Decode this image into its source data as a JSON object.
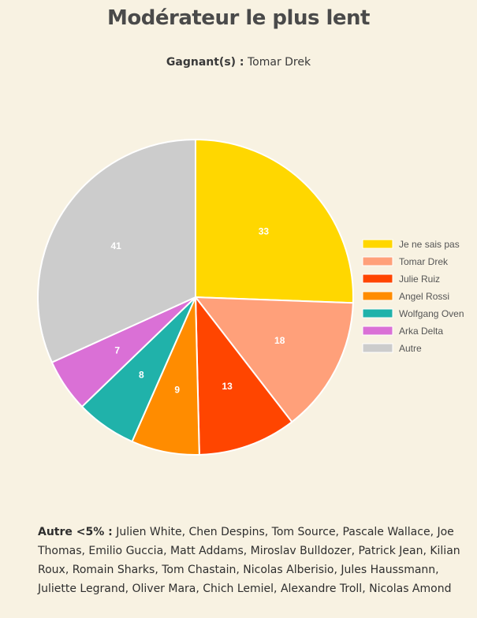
{
  "header": {
    "title": "Modérateur le plus lent",
    "winners_label": "Gagnant(s) :",
    "winners_value": "Tomar Drek"
  },
  "chart_data": {
    "type": "pie",
    "slices": [
      {
        "label": "Je ne sais pas",
        "value": 33,
        "color": "#ffd700"
      },
      {
        "label": "Tomar Drek",
        "value": 18,
        "color": "#ffa07a"
      },
      {
        "label": "Julie Ruiz",
        "value": 13,
        "color": "#ff4500"
      },
      {
        "label": "Angel Rossi",
        "value": 9,
        "color": "#ff8c00"
      },
      {
        "label": "Wolfgang Oven",
        "value": 8,
        "color": "#20b2aa"
      },
      {
        "label": "Arka Delta",
        "value": 7,
        "color": "#da70d6"
      },
      {
        "label": "Autre",
        "value": 41,
        "color": "#cccccc"
      }
    ],
    "legend_position": "right"
  },
  "footer": {
    "label": "Autre <5% :",
    "text": "Julien White, Chen Despins, Tom Source, Pascale Wallace, Joe Thomas, Emilio Guccia, Matt Addams, Miroslav Bulldozer, Patrick Jean, Kilian Roux, Romain Sharks, Tom Chastain, Nicolas Alberisio, Jules Haussmann, Juliette Legrand, Oliver Mara, Chich Lemiel, Alexandre Troll, Nicolas Amond"
  }
}
